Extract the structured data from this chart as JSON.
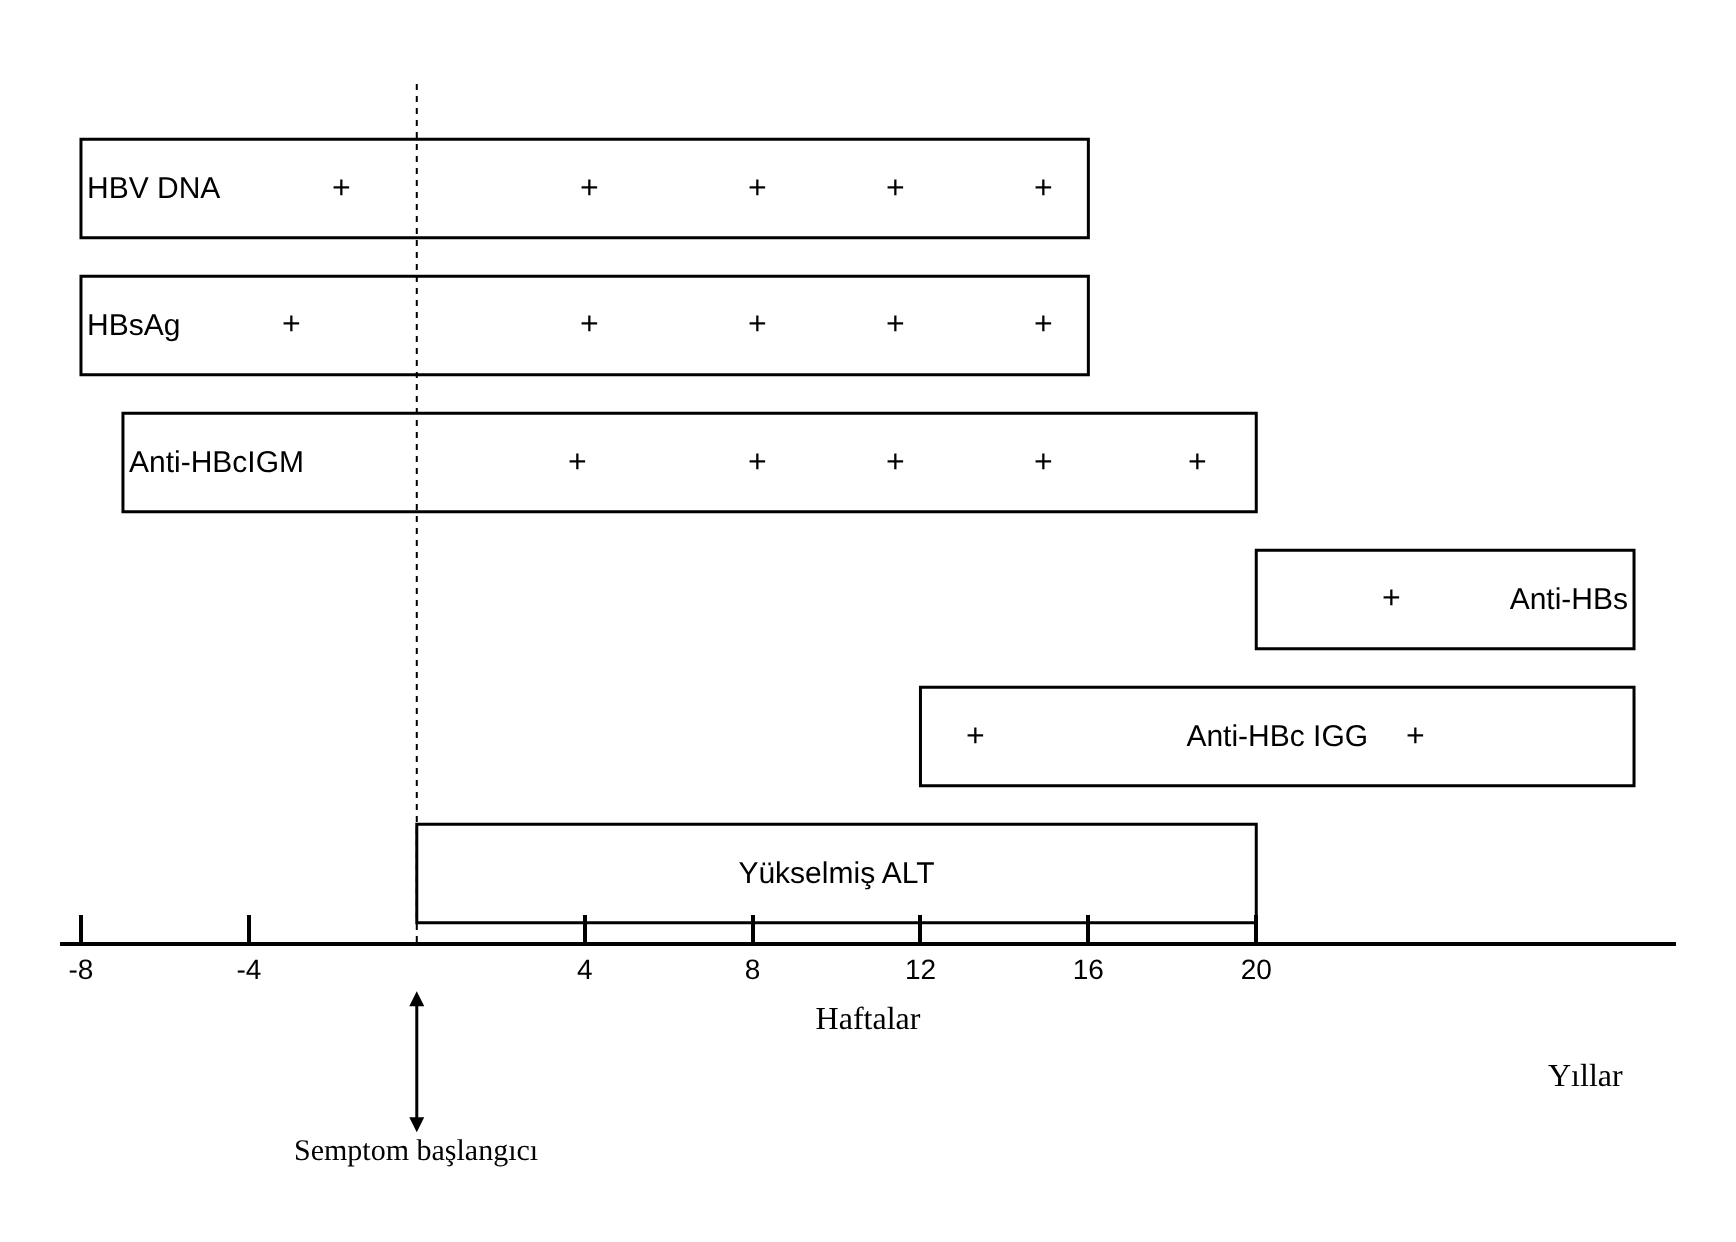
{
  "chart_data": {
    "type": "bar",
    "orientation": "horizontal",
    "categories": [
      "HBV DNA",
      "HBsAg",
      "Anti-HBcIGM",
      "Anti-HBs",
      "Anti-HBc IGG",
      "Yükselmiş ALT"
    ],
    "base": [
      -8,
      -8,
      -7,
      20,
      12,
      0
    ],
    "values": [
      24,
      24,
      27,
      9,
      17,
      20
    ],
    "color": "#ffffff",
    "xlim": [
      -8.5,
      30
    ],
    "xticks": [
      -8,
      -4,
      4,
      8,
      12,
      16,
      20
    ],
    "xlabel": "Haftalar",
    "tick_labels": "x",
    "ref_lines": [
      {
        "axis": "x",
        "value": 0,
        "label": "Semptom başlangıcı",
        "line_style": "dotted",
        "color": "#000000"
      }
    ],
    "annotations": [
      {
        "text": "+",
        "x": -1.8,
        "y": "HBV DNA"
      },
      {
        "text": "+",
        "x": 4.1,
        "y": "HBV DNA"
      },
      {
        "text": "+",
        "x": 8.1,
        "y": "HBV DNA"
      },
      {
        "text": "+",
        "x": 11.4,
        "y": "HBV DNA"
      },
      {
        "text": "+",
        "x": 14.9,
        "y": "HBV DNA"
      },
      {
        "text": "+",
        "x": -3,
        "y": "HBsAg"
      },
      {
        "text": "+",
        "x": 4.1,
        "y": "HBsAg"
      },
      {
        "text": "+",
        "x": 8.1,
        "y": "HBsAg"
      },
      {
        "text": "+",
        "x": 11.4,
        "y": "HBsAg"
      },
      {
        "text": "+",
        "x": 14.9,
        "y": "HBsAg"
      },
      {
        "text": "+",
        "x": 3.8,
        "y": "Anti-HBcIGM"
      },
      {
        "text": "+",
        "x": 8.1,
        "y": "Anti-HBcIGM"
      },
      {
        "text": "+",
        "x": 11.4,
        "y": "Anti-HBcIGM"
      },
      {
        "text": "+",
        "x": 14.9,
        "y": "Anti-HBcIGM"
      },
      {
        "text": "+",
        "x": 18.6,
        "y": "Anti-HBcIGM"
      },
      {
        "text": "+",
        "x": 23.2,
        "y": "Anti-HBs"
      },
      {
        "text": "+",
        "x": 13.3,
        "y": "Anti-HBc IGG"
      },
      {
        "text": "+",
        "x": 23.8,
        "y": "Anti-HBc IGG"
      },
      "Yıllar"
    ]
  }
}
